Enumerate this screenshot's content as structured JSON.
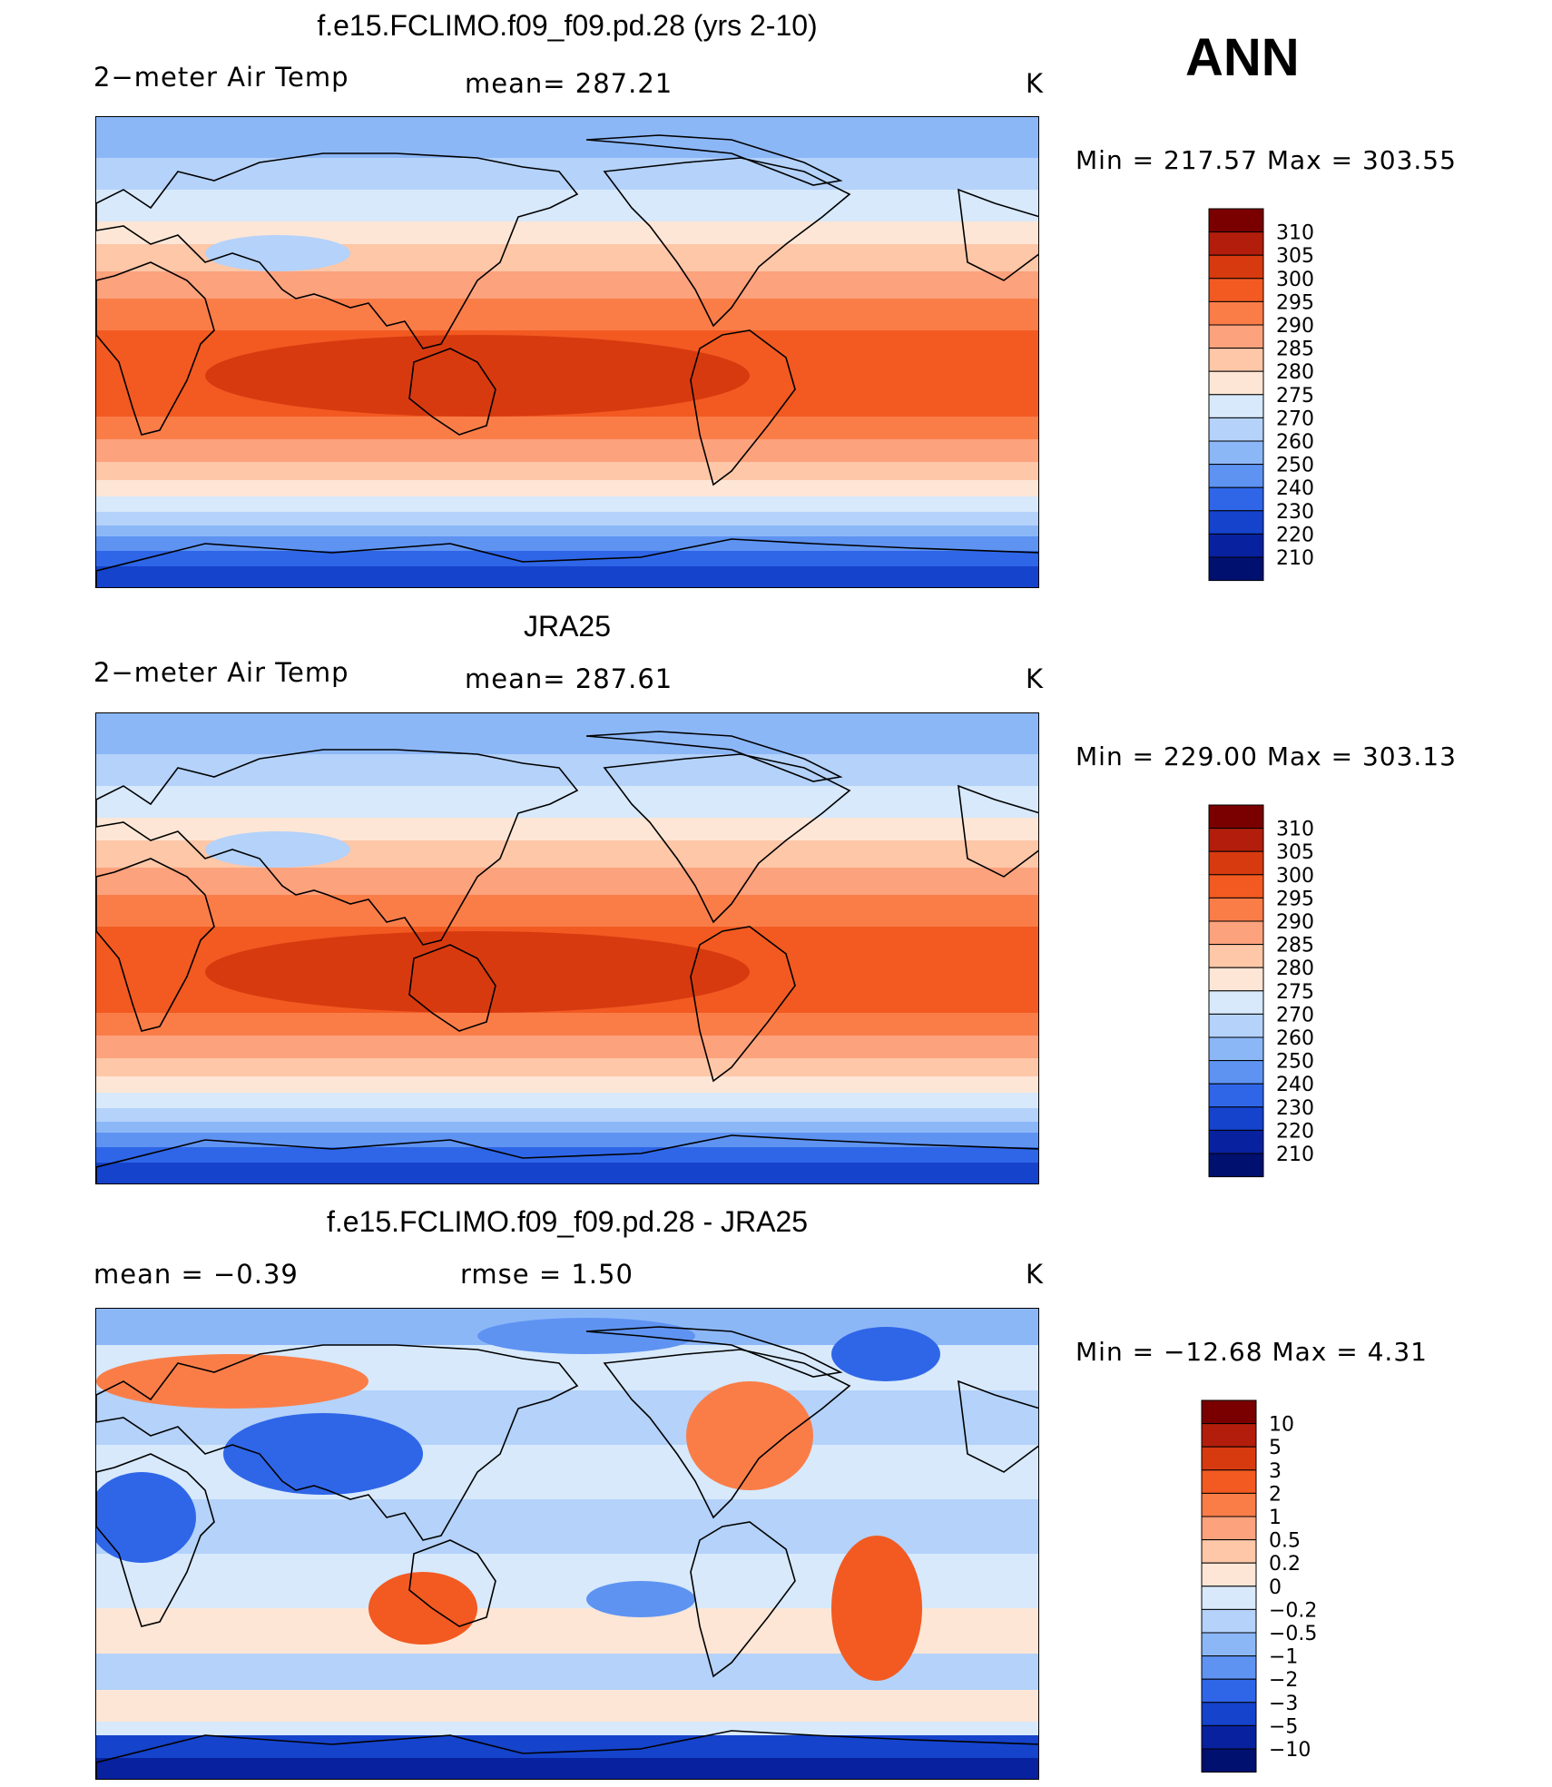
{
  "season": "ANN",
  "units_label": "K",
  "panels": [
    {
      "id": "model",
      "title": "f.e15.FCLIMO.f09_f09.pd.28 (yrs 2-10)",
      "left_label": "2−meter Air Temp",
      "center_label": "mean=  287.21",
      "right_label": "K",
      "minmax": "Min  =  217.57  Max  =  303.55"
    },
    {
      "id": "obs",
      "title": "JRA25",
      "left_label": "2−meter Air Temp",
      "center_label": "mean=  287.61",
      "right_label": "K",
      "minmax": "Min  =  229.00  Max  =  303.13"
    },
    {
      "id": "diff",
      "title": "f.e15.FCLIMO.f09_f09.pd.28 - JRA25",
      "left_label": "mean  =     −0.39",
      "center_label": "rmse  =      1.50",
      "right_label": "K",
      "minmax": "Min  =  −12.68  Max  =       4.31"
    }
  ],
  "chart_data": [
    {
      "type": "heatmap",
      "title": "f.e15.FCLIMO.f09_f09.pd.28 (yrs 2-10)",
      "variable": "2-meter Air Temp",
      "units": "K",
      "mean": 287.21,
      "min": 217.57,
      "max": 303.55,
      "colorbar_levels": [
        "310",
        "305",
        "300",
        "295",
        "290",
        "285",
        "280",
        "275",
        "270",
        "260",
        "250",
        "240",
        "230",
        "220",
        "210"
      ],
      "colorbar_colors": [
        "#7a0000",
        "#b21e0b",
        "#d83a10",
        "#f25a21",
        "#fa7d48",
        "#fca27d",
        "#fdc7a8",
        "#fde6d6",
        "#d7e9fb",
        "#b4d2fa",
        "#8cb7f7",
        "#5e93f2",
        "#2f66e8",
        "#1543cc",
        "#08219e",
        "#00106f"
      ]
    },
    {
      "type": "heatmap",
      "title": "JRA25",
      "variable": "2-meter Air Temp",
      "units": "K",
      "mean": 287.61,
      "min": 229.0,
      "max": 303.13,
      "colorbar_levels": [
        "310",
        "305",
        "300",
        "295",
        "290",
        "285",
        "280",
        "275",
        "270",
        "260",
        "250",
        "240",
        "230",
        "220",
        "210"
      ],
      "colorbar_colors": [
        "#7a0000",
        "#b21e0b",
        "#d83a10",
        "#f25a21",
        "#fa7d48",
        "#fca27d",
        "#fdc7a8",
        "#fde6d6",
        "#d7e9fb",
        "#b4d2fa",
        "#8cb7f7",
        "#5e93f2",
        "#2f66e8",
        "#1543cc",
        "#08219e",
        "#00106f"
      ]
    },
    {
      "type": "heatmap",
      "title": "f.e15.FCLIMO.f09_f09.pd.28 - JRA25",
      "units": "K",
      "mean": -0.39,
      "rmse": 1.5,
      "min": -12.68,
      "max": 4.31,
      "colorbar_levels": [
        "10",
        "5",
        "3",
        "2",
        "1",
        "0.5",
        "0.2",
        "0",
        "−0.2",
        "−0.5",
        "−1",
        "−2",
        "−3",
        "−5",
        "−10"
      ],
      "colorbar_colors": [
        "#7a0000",
        "#b21e0b",
        "#d83a10",
        "#f25a21",
        "#fa7d48",
        "#fca27d",
        "#fdc7a8",
        "#fde6d6",
        "#d7e9fb",
        "#b4d2fa",
        "#8cb7f7",
        "#5e93f2",
        "#2f66e8",
        "#1543cc",
        "#08219e",
        "#00106f"
      ]
    }
  ]
}
